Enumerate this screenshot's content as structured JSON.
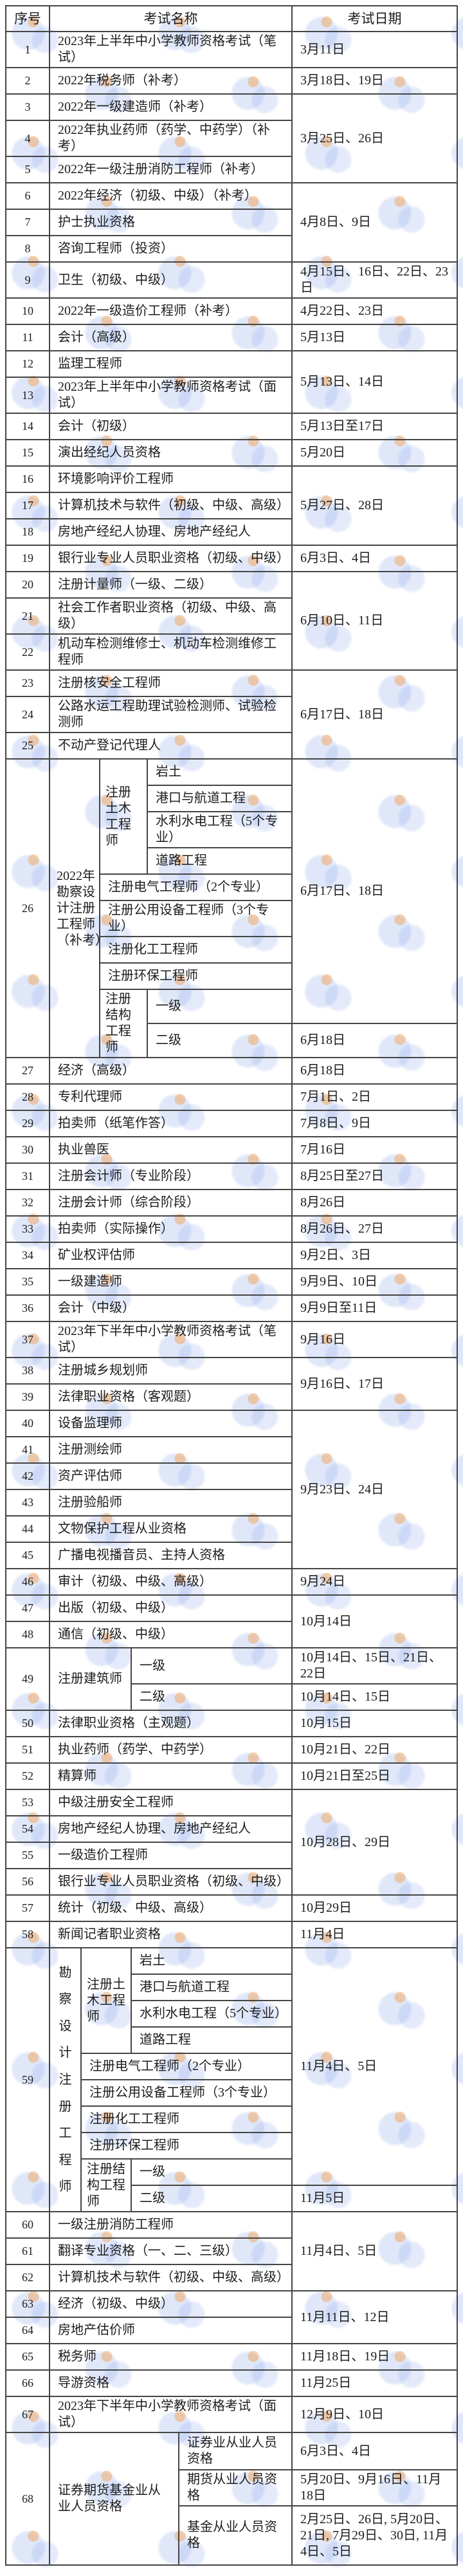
{
  "colors": {
    "border": "#454545",
    "text": "#1c1c1c",
    "background": "#ffffff",
    "watermark_blue": "#96afeb",
    "watermark_orange": "#f2a45c"
  },
  "table": {
    "headers": [
      "序号",
      "考试名称",
      "考试日期"
    ],
    "groups": [
      {
        "kind": "simple",
        "date": "3月11日",
        "rows": [
          {
            "no": "1",
            "name": "2023年上半年中小学教师资格考试（笔试）"
          }
        ]
      },
      {
        "kind": "simple",
        "date": "3月18日、19日",
        "rows": [
          {
            "no": "2",
            "name": "2022年税务师（补考）"
          }
        ]
      },
      {
        "kind": "simple",
        "date": "3月25日、26日",
        "rows": [
          {
            "no": "3",
            "name": "2022年一级建造师（补考）"
          },
          {
            "no": "4",
            "name": "2022年执业药师（药学、中药学）（补考）"
          },
          {
            "no": "5",
            "name": "2022年一级注册消防工程师（补考）"
          }
        ]
      },
      {
        "kind": "simple",
        "date": "4月8日、9日",
        "rows": [
          {
            "no": "6",
            "name": "2022年经济（初级、中级）（补考）"
          },
          {
            "no": "7",
            "name": "护士执业资格"
          },
          {
            "no": "8",
            "name": "咨询工程师（投资）"
          }
        ]
      },
      {
        "kind": "simple",
        "date": "4月15日、16日、22日、23日",
        "rows": [
          {
            "no": "9",
            "name": "卫生（初级、中级）"
          }
        ]
      },
      {
        "kind": "simple",
        "date": "4月22日、23日",
        "rows": [
          {
            "no": "10",
            "name": "2022年一级造价工程师（补考）"
          }
        ]
      },
      {
        "kind": "simple",
        "date": "5月13日",
        "rows": [
          {
            "no": "11",
            "name": "会计（高级）"
          }
        ]
      },
      {
        "kind": "simple",
        "date": "5月13日、14日",
        "rows": [
          {
            "no": "12",
            "name": "监理工程师"
          },
          {
            "no": "13",
            "name": "2023年上半年中小学教师资格考试（面试）"
          }
        ]
      },
      {
        "kind": "simple",
        "date": "5月13日至17日",
        "rows": [
          {
            "no": "14",
            "name": "会计（初级）"
          }
        ]
      },
      {
        "kind": "simple",
        "date": "5月20日",
        "rows": [
          {
            "no": "15",
            "name": "演出经纪人员资格"
          }
        ]
      },
      {
        "kind": "simple",
        "date": "5月27日、28日",
        "rows": [
          {
            "no": "16",
            "name": "环境影响评价工程师"
          },
          {
            "no": "17",
            "name": "计算机技术与软件（初级、中级、高级）"
          },
          {
            "no": "18",
            "name": "房地产经纪人协理、房地产经纪人"
          }
        ]
      },
      {
        "kind": "simple",
        "date": "6月3日、4日",
        "rows": [
          {
            "no": "19",
            "name": "银行业专业人员职业资格（初级、中级）"
          }
        ]
      },
      {
        "kind": "simple",
        "date": "6月10日、11日",
        "rows": [
          {
            "no": "20",
            "name": "注册计量师（一级、二级）"
          },
          {
            "no": "21",
            "name": "社会工作者职业资格（初级、中级、高级）"
          },
          {
            "no": "22",
            "name": "机动车检测维修士、机动车检测维修工程师"
          }
        ]
      },
      {
        "kind": "simple",
        "date": "6月17日、18日",
        "rows": [
          {
            "no": "23",
            "name": "注册核安全工程师"
          },
          {
            "no": "24",
            "name": "公路水运工程助理试验检测师、试验检测师"
          },
          {
            "no": "25",
            "name": "不动产登记代理人"
          }
        ]
      },
      {
        "kind": "survey",
        "no": "26",
        "vertical": false,
        "label": "2022年勘察设计注册工程师（补考）",
        "label_lines": [
          "2022年",
          "勘察设",
          "计注册",
          "工程师",
          "（补考）"
        ],
        "civil_label": "注册土木工程师",
        "civil_specialties": [
          "岩土",
          "港口与航道工程",
          "水利水电工程（5个专业）",
          "道路工程"
        ],
        "middle": [
          "注册电气工程师（2个专业）",
          "注册公用设备工程师（3个专业）",
          "注册化工工程师",
          "注册环保工程师"
        ],
        "structural_label": "注册结构工程师",
        "levels": [
          "一级",
          "二级"
        ],
        "date_main": "6月17日、18日",
        "date_last": "6月18日"
      },
      {
        "kind": "simple",
        "date": "6月18日",
        "rows": [
          {
            "no": "27",
            "name": "经济（高级）"
          }
        ]
      },
      {
        "kind": "simple",
        "date": "7月1日、2日",
        "rows": [
          {
            "no": "28",
            "name": "专利代理师"
          }
        ]
      },
      {
        "kind": "simple",
        "date": "7月8日、9日",
        "rows": [
          {
            "no": "29",
            "name": "拍卖师（纸笔作答）"
          }
        ]
      },
      {
        "kind": "simple",
        "date": "7月16日",
        "rows": [
          {
            "no": "30",
            "name": "执业兽医"
          }
        ]
      },
      {
        "kind": "simple",
        "date": "8月25日至27日",
        "rows": [
          {
            "no": "31",
            "name": "注册会计师（专业阶段）"
          }
        ]
      },
      {
        "kind": "simple",
        "date": "8月26日",
        "rows": [
          {
            "no": "32",
            "name": "注册会计师（综合阶段）"
          }
        ]
      },
      {
        "kind": "simple",
        "date": "8月26日、27日",
        "rows": [
          {
            "no": "33",
            "name": "拍卖师（实际操作）"
          }
        ]
      },
      {
        "kind": "simple",
        "date": "9月2日、3日",
        "rows": [
          {
            "no": "34",
            "name": "矿业权评估师"
          }
        ]
      },
      {
        "kind": "simple",
        "date": "9月9日、10日",
        "rows": [
          {
            "no": "35",
            "name": "一级建造师"
          }
        ]
      },
      {
        "kind": "simple",
        "date": "9月9日至11日",
        "rows": [
          {
            "no": "36",
            "name": "会计（中级）"
          }
        ]
      },
      {
        "kind": "simple",
        "date": "9月16日",
        "rows": [
          {
            "no": "37",
            "name": "2023年下半年中小学教师资格考试（笔试）"
          }
        ]
      },
      {
        "kind": "simple",
        "date": "9月16日、17日",
        "rows": [
          {
            "no": "38",
            "name": "注册城乡规划师"
          },
          {
            "no": "39",
            "name": "法律职业资格（客观题）"
          }
        ]
      },
      {
        "kind": "simple",
        "date": "9月23日、24日",
        "rows": [
          {
            "no": "40",
            "name": "设备监理师"
          },
          {
            "no": "41",
            "name": "注册测绘师"
          },
          {
            "no": "42",
            "name": "资产评估师"
          },
          {
            "no": "43",
            "name": "注册验船师"
          },
          {
            "no": "44",
            "name": "文物保护工程从业资格"
          },
          {
            "no": "45",
            "name": "广播电视播音员、主持人资格"
          }
        ]
      },
      {
        "kind": "simple",
        "date": "9月24日",
        "rows": [
          {
            "no": "46",
            "name": "审计（初级、中级、高级）"
          }
        ]
      },
      {
        "kind": "simple",
        "date": "10月14日",
        "rows": [
          {
            "no": "47",
            "name": "出版（初级、中级）"
          },
          {
            "no": "48",
            "name": "通信（初级、中级）"
          }
        ]
      },
      {
        "kind": "arch",
        "no": "49",
        "name": "注册建筑师",
        "levels": [
          {
            "label": "一级",
            "date": "10月14日、15日、21日、22日"
          },
          {
            "label": "二级",
            "date": "10月14日、15日"
          }
        ]
      },
      {
        "kind": "simple",
        "date": "10月15日",
        "rows": [
          {
            "no": "50",
            "name": "法律职业资格（主观题）"
          }
        ]
      },
      {
        "kind": "simple",
        "date": "10月21日、22日",
        "rows": [
          {
            "no": "51",
            "name": "执业药师（药学、中药学）"
          }
        ]
      },
      {
        "kind": "simple",
        "date": "10月21日至25日",
        "rows": [
          {
            "no": "52",
            "name": "精算师"
          }
        ]
      },
      {
        "kind": "simple",
        "date": "10月28日、29日",
        "rows": [
          {
            "no": "53",
            "name": "中级注册安全工程师"
          },
          {
            "no": "54",
            "name": "房地产经纪人协理、房地产经纪人"
          },
          {
            "no": "55",
            "name": "一级造价工程师"
          },
          {
            "no": "56",
            "name": "银行业专业人员职业资格（初级、中级）"
          }
        ]
      },
      {
        "kind": "simple",
        "date": "10月29日",
        "rows": [
          {
            "no": "57",
            "name": "统计（初级、中级、高级）"
          }
        ]
      },
      {
        "kind": "simple",
        "date": "11月4日",
        "rows": [
          {
            "no": "58",
            "name": "新闻记者职业资格"
          }
        ]
      },
      {
        "kind": "survey",
        "no": "59",
        "vertical": true,
        "label": "勘察设计注册工程师",
        "label_lines": [
          "勘",
          "察",
          "设",
          "计",
          "注",
          "册",
          "工",
          "程",
          "师"
        ],
        "civil_label": "注册土木工程师",
        "civil_specialties": [
          "岩土",
          "港口与航道工程",
          "水利水电工程（5个专业）",
          "道路工程"
        ],
        "middle": [
          "注册电气工程师（2个专业）",
          "注册公用设备工程师（3个专业）",
          "注册化工工程师",
          "注册环保工程师"
        ],
        "structural_label": "注册结构工程师",
        "levels": [
          "一级",
          "二级"
        ],
        "date_main": "11月4日、5日",
        "date_last": "11月5日"
      },
      {
        "kind": "simple",
        "date": "11月4日、5日",
        "rows": [
          {
            "no": "60",
            "name": "一级注册消防工程师"
          },
          {
            "no": "61",
            "name": "翻译专业资格（一、二、三级）"
          },
          {
            "no": "62",
            "name": "计算机技术与软件（初级、中级、高级）"
          }
        ]
      },
      {
        "kind": "simple",
        "date": "11月11日、12日",
        "rows": [
          {
            "no": "63",
            "name": "经济（初级、中级）"
          },
          {
            "no": "64",
            "name": "房地产估价师"
          }
        ]
      },
      {
        "kind": "simple",
        "date": "11月18日、19日",
        "rows": [
          {
            "no": "65",
            "name": "税务师"
          }
        ]
      },
      {
        "kind": "simple",
        "date": "11月25日",
        "rows": [
          {
            "no": "66",
            "name": "导游资格"
          }
        ]
      },
      {
        "kind": "simple",
        "date": "12月9日、10日",
        "rows": [
          {
            "no": "67",
            "name": "2023年下半年中小学教师资格考试（面试）"
          }
        ]
      },
      {
        "kind": "securities",
        "no": "68",
        "name": "证券期货基金业从业人员资格",
        "subs": [
          {
            "label": "证券业从业人员资格",
            "date": "6月3日、4日"
          },
          {
            "label": "期货从业人员资格",
            "date": "5月20日、9月16日、11月18日"
          },
          {
            "label": "基金从业人员资格",
            "date": "2月25日、26日, 5月20日、21日, 7月29日、30日, 11月4日、5日"
          }
        ]
      }
    ]
  }
}
